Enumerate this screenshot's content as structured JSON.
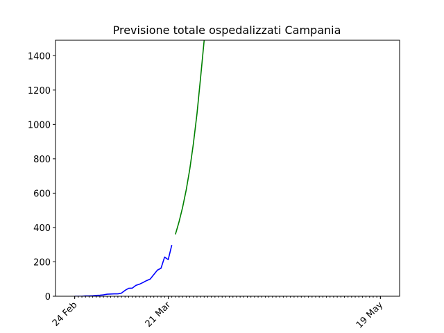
{
  "chart_data": {
    "type": "line",
    "title": "Previsione totale ospedalizzati Campania",
    "xlabel": "",
    "ylabel": "",
    "ylim": [
      0,
      1490
    ],
    "xlim": [
      "2020-02-24",
      "2020-05-19"
    ],
    "grid": false,
    "legend": "none",
    "y_ticks": [
      0,
      200,
      400,
      600,
      800,
      1000,
      1200,
      1400
    ],
    "x_tick_labels": [
      {
        "date": "2020-02-24",
        "label": "24 Feb"
      },
      {
        "date": "2020-03-21",
        "label": "21 Mar"
      },
      {
        "date": "2020-05-19",
        "label": "19 May"
      }
    ],
    "x_minor_ticks": "daily",
    "series": [
      {
        "color": "#0000ff",
        "points": [
          [
            "2020-02-24",
            0
          ],
          [
            "2020-02-25",
            0
          ],
          [
            "2020-02-26",
            0
          ],
          [
            "2020-02-27",
            2
          ],
          [
            "2020-02-28",
            2
          ],
          [
            "2020-02-29",
            3
          ],
          [
            "2020-03-01",
            5
          ],
          [
            "2020-03-02",
            6
          ],
          [
            "2020-03-03",
            8
          ],
          [
            "2020-03-04",
            12
          ],
          [
            "2020-03-05",
            13
          ],
          [
            "2020-03-06",
            14
          ],
          [
            "2020-03-07",
            14
          ],
          [
            "2020-03-08",
            18
          ],
          [
            "2020-03-09",
            34
          ],
          [
            "2020-03-10",
            46
          ],
          [
            "2020-03-11",
            47
          ],
          [
            "2020-03-12",
            63
          ],
          [
            "2020-03-13",
            70
          ],
          [
            "2020-03-14",
            80
          ],
          [
            "2020-03-15",
            91
          ],
          [
            "2020-03-16",
            100
          ],
          [
            "2020-03-17",
            126
          ],
          [
            "2020-03-18",
            152
          ],
          [
            "2020-03-19",
            163
          ],
          [
            "2020-03-20",
            228
          ],
          [
            "2020-03-21",
            213
          ],
          [
            "2020-03-22",
            298
          ]
        ]
      },
      {
        "color": "#008000",
        "points": [
          [
            "2020-03-23",
            360
          ],
          [
            "2020-03-24",
            432
          ],
          [
            "2020-03-25",
            517
          ],
          [
            "2020-03-26",
            618
          ],
          [
            "2020-03-27",
            740
          ],
          [
            "2020-03-28",
            888
          ],
          [
            "2020-03-29",
            1062
          ],
          [
            "2020-03-30",
            1272
          ],
          [
            "2020-03-31",
            1490
          ]
        ]
      }
    ]
  }
}
